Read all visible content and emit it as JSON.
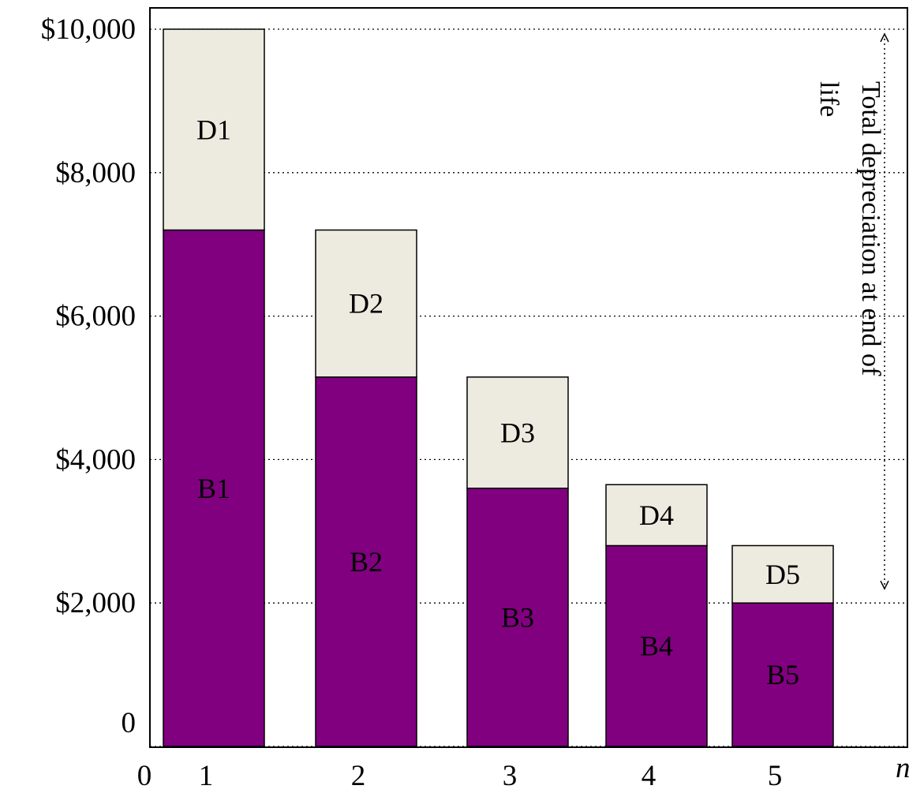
{
  "chart_data": {
    "type": "bar",
    "stacked": true,
    "categories": [
      "1",
      "2",
      "3",
      "4",
      "5"
    ],
    "series": [
      {
        "color": "#800080",
        "values": [
          7200,
          5150,
          3600,
          2800,
          2000
        ],
        "labels": [
          "B1",
          "B2",
          "B3",
          "B4",
          "B5"
        ]
      },
      {
        "color": "#EDEBE0",
        "values": [
          2800,
          2050,
          1550,
          850,
          800
        ],
        "labels": [
          "D1",
          "D2",
          "D3",
          "D4",
          "D5"
        ]
      }
    ],
    "y_tick_labels": [
      {
        "value": 0,
        "label": "0"
      },
      {
        "value": 2000,
        "label": "$2,000"
      },
      {
        "value": 4000,
        "label": "$4,000"
      },
      {
        "value": 6000,
        "label": "$6,000"
      },
      {
        "value": 8000,
        "label": "$8,000"
      },
      {
        "value": 10000,
        "label": "$10,000"
      }
    ],
    "x_origin_label": "0",
    "x_axis_label": "n",
    "ylim": [
      0,
      10000
    ],
    "grid": "dotted horizontal",
    "annotation": {
      "text_line1": "Total depreciation at end of",
      "text_line2": "life",
      "arrow_from": 10000,
      "arrow_to": 2000
    }
  }
}
